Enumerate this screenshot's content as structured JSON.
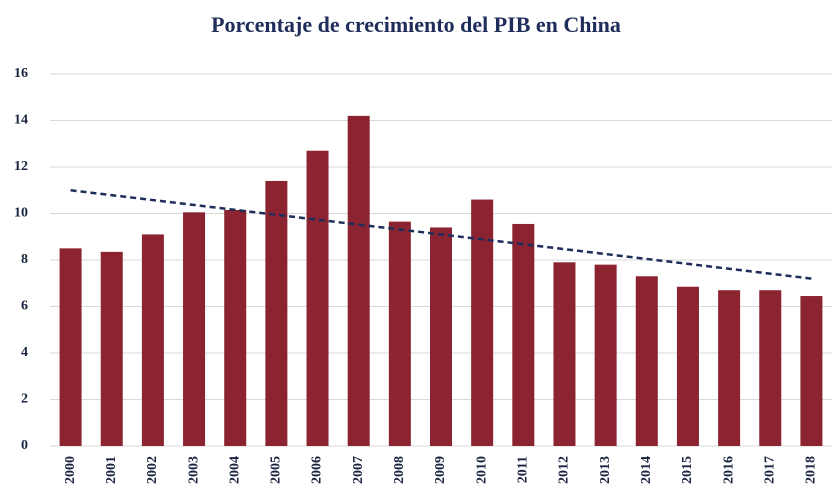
{
  "chart_data": {
    "type": "bar",
    "title": "Porcentaje de crecimiento del PIB en China",
    "categories": [
      "2000",
      "2001",
      "2002",
      "2003",
      "2004",
      "2005",
      "2006",
      "2007",
      "2008",
      "2009",
      "2010",
      "2011",
      "2012",
      "2013",
      "2014",
      "2015",
      "2016",
      "2017",
      "2018"
    ],
    "values": [
      8.5,
      8.35,
      9.1,
      10.05,
      10.15,
      11.4,
      12.7,
      14.2,
      9.65,
      9.4,
      10.6,
      9.55,
      7.9,
      7.8,
      7.3,
      6.85,
      6.7,
      6.7,
      6.45
    ],
    "color": "#8b2330",
    "trendline": {
      "start": 11.0,
      "end": 7.2,
      "color": "#1f2d5a"
    },
    "ylim": [
      0,
      16
    ],
    "yticks": [
      0,
      2,
      4,
      6,
      8,
      10,
      12,
      14,
      16
    ],
    "grid": true
  }
}
